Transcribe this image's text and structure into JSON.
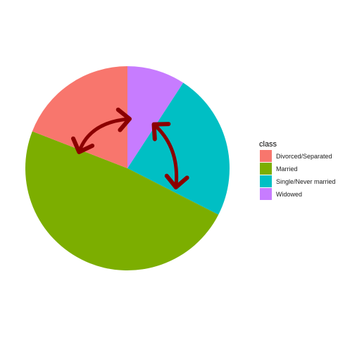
{
  "chart_data": {
    "type": "pie",
    "categories": [
      "Divorced/Separated",
      "Married",
      "Single/Never married",
      "Widowed"
    ],
    "values": [
      19.1,
      48.4,
      23.3,
      9.2
    ],
    "colors": [
      "#F8766D",
      "#7CAE00",
      "#00BFC4",
      "#C77CFF"
    ],
    "legend": {
      "title": "class",
      "position": "right",
      "items": [
        {
          "label": "Divorced/Separated",
          "color": "#F8766D"
        },
        {
          "label": "Married",
          "color": "#7CAE00"
        },
        {
          "label": "Single/Never married",
          "color": "#00BFC4"
        },
        {
          "label": "Widowed",
          "color": "#C77CFF"
        }
      ]
    },
    "annotations": [
      {
        "type": "double-arrow",
        "connects": [
          "Divorced/Separated",
          "Widowed"
        ],
        "color": "#8B0000"
      },
      {
        "type": "double-arrow",
        "connects": [
          "Widowed",
          "Single/Never married"
        ],
        "color": "#8B0000"
      }
    ]
  }
}
